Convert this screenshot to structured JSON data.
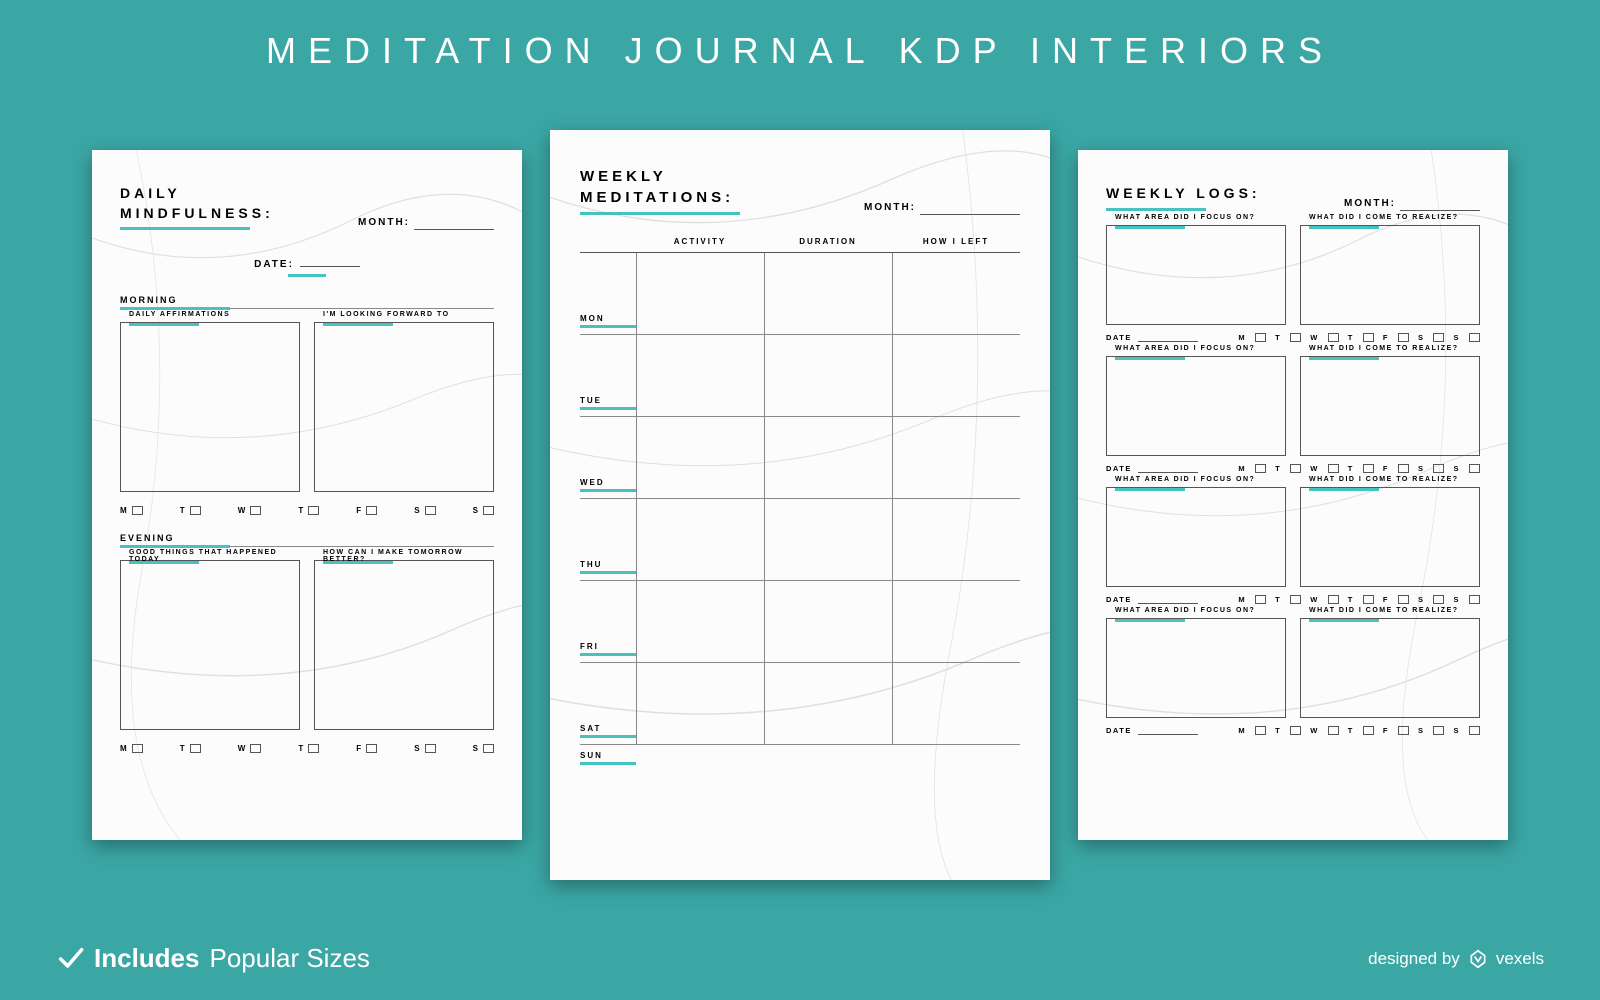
{
  "colors": {
    "bg": "#3aa7a4",
    "teal": "#46c3c0",
    "paper": "#fcfcfc",
    "ink": "#222",
    "line": "#7a7a7a",
    "white": "#ffffff"
  },
  "banner": {
    "bold": "MEDITATION JOURNAL",
    "regular": "KDP INTERIORS"
  },
  "month_label": "MONTH:",
  "date_label": "DATE:",
  "days_short": [
    "M",
    "T",
    "W",
    "T",
    "F",
    "S",
    "S"
  ],
  "page1": {
    "title_l1": "DAILY",
    "title_l2": "MINDFULNESS:",
    "morning": "MORNING",
    "evening": "EVENING",
    "box1": "DAILY AFFIRMATIONS",
    "box2": "I'M LOOKING FORWARD TO",
    "box3": "GOOD THINGS THAT HAPPENED TODAY",
    "box4": "HOW CAN I MAKE TOMORROW BETTER?"
  },
  "page2": {
    "title_l1": "WEEKLY",
    "title_l2": "MEDITATIONS:",
    "cols": [
      "ACTIVITY",
      "DURATION",
      "HOW I LEFT"
    ],
    "days": [
      "MON",
      "TUE",
      "WED",
      "THU",
      "FRI",
      "SAT",
      "SUN"
    ]
  },
  "page3": {
    "title": "WEEKLY LOGS:",
    "q1": "WHAT AREA DID I FOCUS ON?",
    "q2": "WHAT DID I COME TO REALIZE?",
    "date": "DATE",
    "rows": 4
  },
  "footer": {
    "includes": "Includes",
    "sizes": "Popular Sizes",
    "designed": "designed by",
    "brand": "vexels"
  }
}
